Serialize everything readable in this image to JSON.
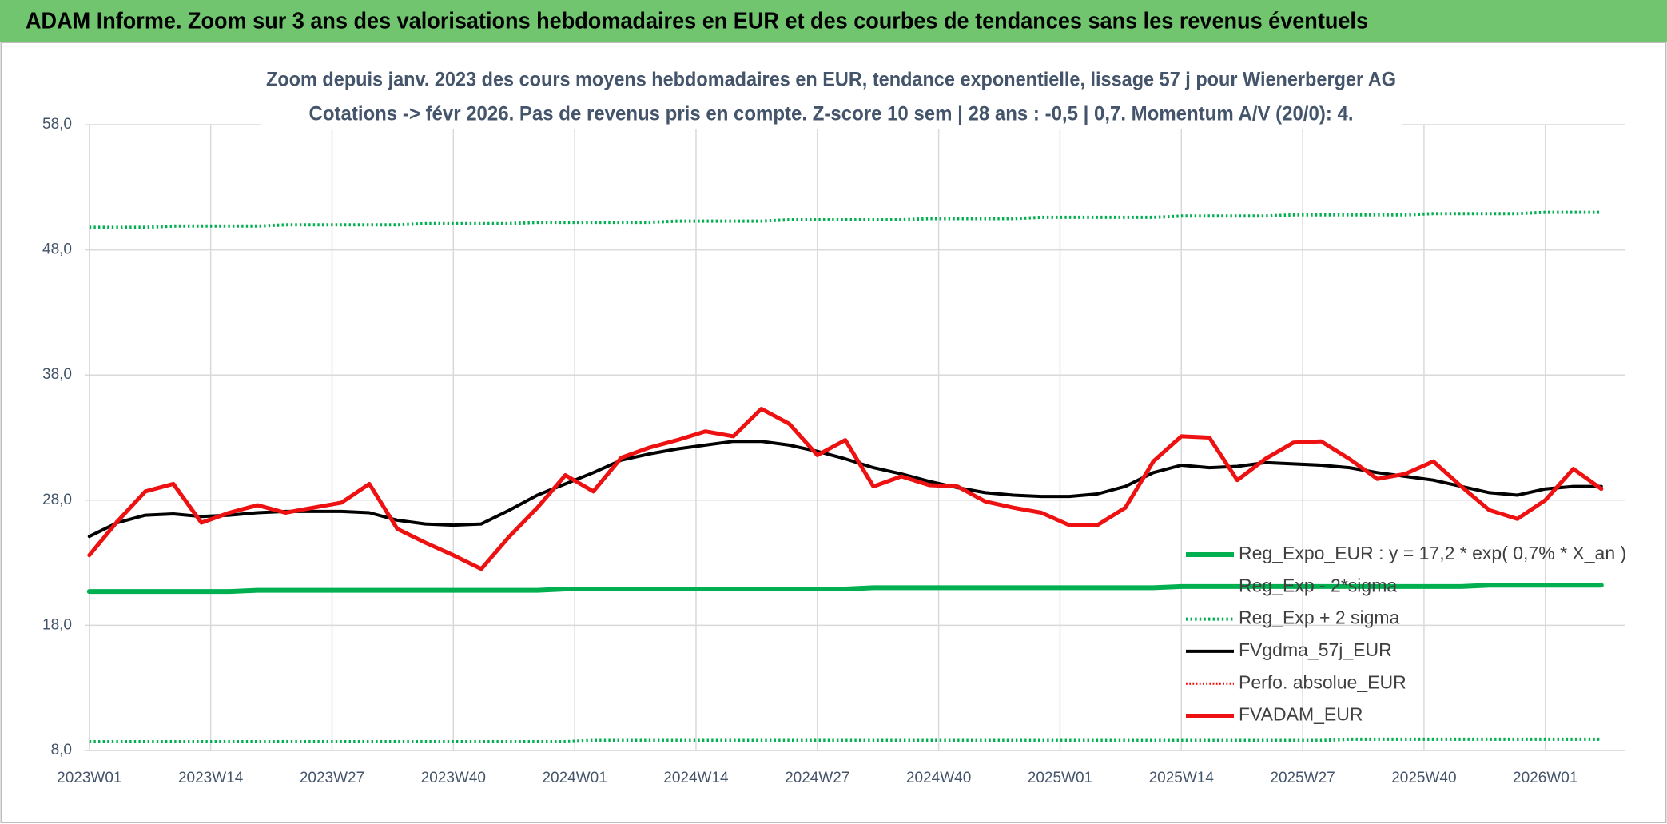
{
  "chart_data": {
    "type": "line",
    "header": "ADAM Informe. Zoom sur 3 ans des valorisations hebdomadaires en EUR et des courbes de tendances sans les revenus éventuels",
    "title": "Zoom depuis janv. 2023 des cours moyens hebdomadaires en EUR, tendance exponentielle, lissage 57 j pour Wienerberger AG",
    "subtitle": "Cotations -> févr 2026. Pas de revenus pris en compte. Z-score 10 sem | 28 ans : -0,5 | 0,7. Momentum A/V (20/0): 4.",
    "x": [
      0,
      3,
      6,
      9,
      12,
      15,
      18,
      21,
      24,
      27,
      30,
      33,
      36,
      39,
      42,
      45,
      48,
      51,
      54,
      57,
      60,
      63,
      66,
      69,
      72,
      75,
      78,
      81,
      84,
      87,
      90,
      93,
      96,
      99,
      102,
      105,
      108,
      111,
      114,
      117,
      120,
      123,
      126,
      129,
      132,
      135,
      138,
      141,
      144,
      147,
      150,
      153,
      156,
      159,
      162
    ],
    "xlim": [
      -0.5,
      164.5
    ],
    "xticks": [
      {
        "value": 0,
        "label": "2023W01"
      },
      {
        "value": 13,
        "label": "2023W14"
      },
      {
        "value": 26,
        "label": "2023W27"
      },
      {
        "value": 39,
        "label": "2023W40"
      },
      {
        "value": 52,
        "label": "2024W01"
      },
      {
        "value": 65,
        "label": "2024W14"
      },
      {
        "value": 78,
        "label": "2024W27"
      },
      {
        "value": 91,
        "label": "2024W40"
      },
      {
        "value": 104,
        "label": "2025W01"
      },
      {
        "value": 117,
        "label": "2025W14"
      },
      {
        "value": 130,
        "label": "2025W27"
      },
      {
        "value": 143,
        "label": "2025W40"
      },
      {
        "value": 156,
        "label": "2026W01"
      }
    ],
    "ylim": [
      8,
      58
    ],
    "yticks": [
      {
        "value": 8,
        "label": "8,0"
      },
      {
        "value": 18,
        "label": "18,0"
      },
      {
        "value": 28,
        "label": "28,0"
      },
      {
        "value": 38,
        "label": "38,0"
      },
      {
        "value": 48,
        "label": "48,0"
      },
      {
        "value": 58,
        "label": "58,0"
      }
    ],
    "grid": true,
    "legend": "bottom-right",
    "series": [
      {
        "name": "Reg_Expo_EUR : y = 17,2 * exp( 0,7% *  X_an )",
        "color": "#00b050",
        "style": "solid",
        "width": 6,
        "values": [
          20.7,
          20.7,
          20.7,
          20.7,
          20.7,
          20.7,
          20.8,
          20.8,
          20.8,
          20.8,
          20.8,
          20.8,
          20.8,
          20.8,
          20.8,
          20.8,
          20.8,
          20.9,
          20.9,
          20.9,
          20.9,
          20.9,
          20.9,
          20.9,
          20.9,
          20.9,
          20.9,
          20.9,
          21.0,
          21.0,
          21.0,
          21.0,
          21.0,
          21.0,
          21.0,
          21.0,
          21.0,
          21.0,
          21.0,
          21.1,
          21.1,
          21.1,
          21.1,
          21.1,
          21.1,
          21.1,
          21.1,
          21.1,
          21.1,
          21.1,
          21.2,
          21.2,
          21.2,
          21.2,
          21.2
        ]
      },
      {
        "name": "Reg_Exp - 2*sigma",
        "color": "#00b050",
        "style": "dotted",
        "width": 4,
        "values": [
          8.7,
          8.7,
          8.7,
          8.7,
          8.7,
          8.7,
          8.7,
          8.7,
          8.7,
          8.7,
          8.7,
          8.7,
          8.7,
          8.7,
          8.7,
          8.7,
          8.7,
          8.7,
          8.8,
          8.8,
          8.8,
          8.8,
          8.8,
          8.8,
          8.8,
          8.8,
          8.8,
          8.8,
          8.8,
          8.8,
          8.8,
          8.8,
          8.8,
          8.8,
          8.8,
          8.8,
          8.8,
          8.8,
          8.8,
          8.8,
          8.8,
          8.8,
          8.8,
          8.8,
          8.8,
          8.9,
          8.9,
          8.9,
          8.9,
          8.9,
          8.9,
          8.9,
          8.9,
          8.9,
          8.9
        ]
      },
      {
        "name": "Reg_Exp + 2 sigma",
        "color": "#00b050",
        "style": "dotted",
        "width": 4,
        "values": [
          49.8,
          49.8,
          49.8,
          49.9,
          49.9,
          49.9,
          49.9,
          50.0,
          50.0,
          50.0,
          50.0,
          50.0,
          50.1,
          50.1,
          50.1,
          50.1,
          50.2,
          50.2,
          50.2,
          50.2,
          50.2,
          50.3,
          50.3,
          50.3,
          50.3,
          50.4,
          50.4,
          50.4,
          50.4,
          50.4,
          50.5,
          50.5,
          50.5,
          50.5,
          50.6,
          50.6,
          50.6,
          50.6,
          50.6,
          50.7,
          50.7,
          50.7,
          50.7,
          50.8,
          50.8,
          50.8,
          50.8,
          50.8,
          50.9,
          50.9,
          50.9,
          50.9,
          51.0,
          51.0,
          51.0
        ]
      },
      {
        "name": "FVgdma_57j_EUR",
        "color": "#000000",
        "style": "solid",
        "width": 4,
        "values": [
          25.1,
          26.2,
          26.8,
          26.9,
          26.7,
          26.8,
          27.0,
          27.1,
          27.1,
          27.1,
          27.0,
          26.4,
          26.1,
          26.0,
          26.1,
          27.2,
          28.4,
          29.3,
          30.2,
          31.2,
          31.7,
          32.1,
          32.4,
          32.7,
          32.7,
          32.4,
          31.9,
          31.3,
          30.6,
          30.1,
          29.5,
          29.0,
          28.6,
          28.4,
          28.3,
          28.3,
          28.5,
          29.1,
          30.2,
          30.8,
          30.6,
          30.7,
          31.0,
          30.9,
          30.8,
          30.6,
          30.2,
          29.9,
          29.6,
          29.1,
          28.6,
          28.4,
          28.9,
          29.1,
          29.1
        ]
      },
      {
        "name": "Perfo. absolue_EUR",
        "color": "#ff0000",
        "style": "dotted",
        "width": 3,
        "values": [
          null,
          null,
          null,
          null,
          null,
          null,
          null,
          null,
          null,
          null,
          null,
          null,
          null,
          null,
          null,
          null,
          null,
          null,
          null,
          null,
          null,
          null,
          null,
          null,
          null,
          null,
          null,
          null,
          null,
          null,
          null,
          null,
          null,
          null,
          null,
          null,
          null,
          null,
          null,
          null,
          null,
          null,
          null,
          null,
          null,
          null,
          null,
          null,
          null,
          null,
          null,
          null,
          null,
          null,
          null
        ]
      },
      {
        "name": "FVADAM_EUR",
        "color": "#ee1111",
        "style": "solid",
        "width": 5,
        "values": [
          23.6,
          26.3,
          28.7,
          29.3,
          26.2,
          27.0,
          27.6,
          27.0,
          27.4,
          27.8,
          29.3,
          25.7,
          24.6,
          23.6,
          22.5,
          25.1,
          27.4,
          30.0,
          28.7,
          31.4,
          32.2,
          32.8,
          33.5,
          33.1,
          35.3,
          34.1,
          31.6,
          32.8,
          29.1,
          29.9,
          29.2,
          29.1,
          27.9,
          27.4,
          27.0,
          26.0,
          26.0,
          27.4,
          31.1,
          33.1,
          33.0,
          29.6,
          31.3,
          32.6,
          32.7,
          31.3,
          29.7,
          30.1,
          31.1,
          29.1,
          27.2,
          26.5,
          28.0,
          30.5,
          28.9
        ]
      }
    ]
  }
}
